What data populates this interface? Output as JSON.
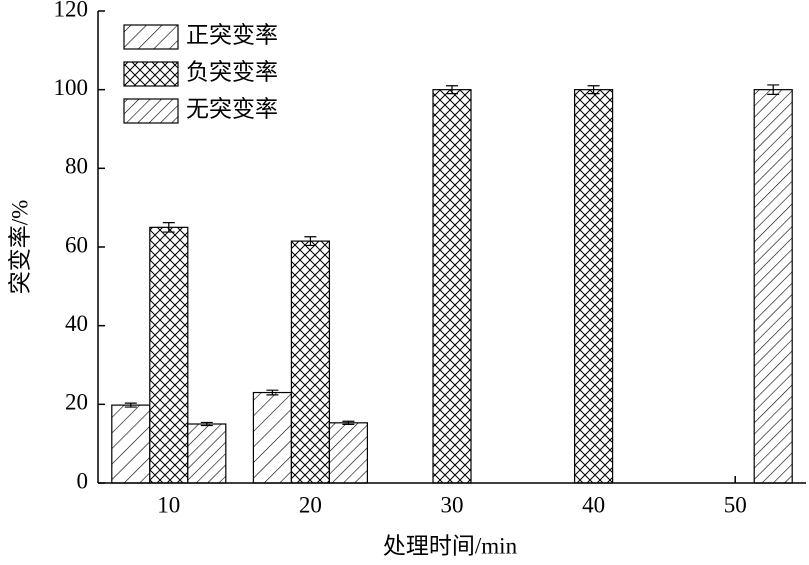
{
  "chart_data": {
    "type": "bar",
    "x_label": "处理时间/min",
    "y_label": "突变率/%",
    "categories": [
      "10",
      "20",
      "30",
      "40",
      "50"
    ],
    "series": [
      {
        "name": "正突变率",
        "color": "#000000",
        "hatch": "/",
        "values": [
          19.8,
          23,
          null,
          null,
          null
        ],
        "errors": [
          0.5,
          0.6,
          null,
          null,
          null
        ]
      },
      {
        "name": "负突变率",
        "color": "#000000",
        "hatch": "x",
        "values": [
          65,
          61.5,
          100,
          100,
          null
        ],
        "errors": [
          1.2,
          1.1,
          1,
          1,
          null
        ]
      },
      {
        "name": "无突变率",
        "color": "#000000",
        "hatch": "//",
        "values": [
          15,
          15.3,
          null,
          null,
          100
        ],
        "errors": [
          0.4,
          0.4,
          null,
          null,
          1.2
        ]
      }
    ],
    "ylim": [
      0,
      120
    ],
    "yticks": [
      0,
      20,
      40,
      60,
      80,
      100,
      120
    ],
    "legend": "upper left"
  }
}
